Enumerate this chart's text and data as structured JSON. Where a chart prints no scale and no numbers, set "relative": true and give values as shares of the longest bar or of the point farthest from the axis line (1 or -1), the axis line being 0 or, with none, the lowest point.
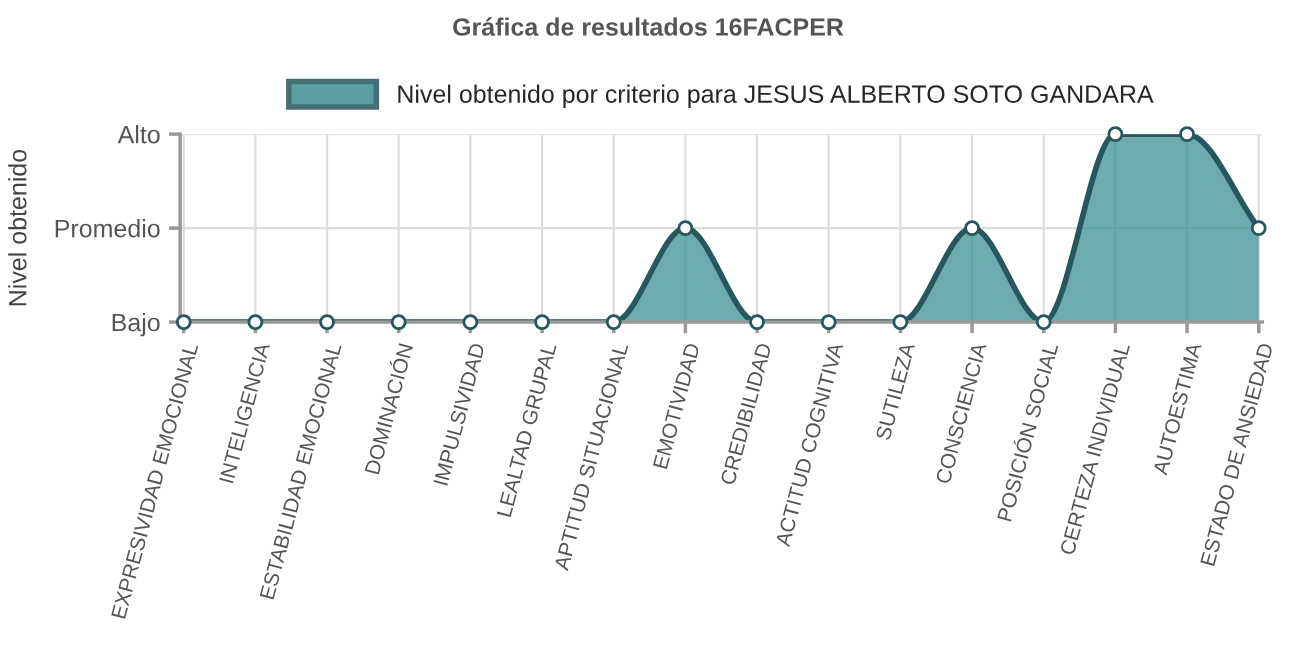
{
  "chart_data": {
    "type": "area",
    "title": "Gráfica de resultados 16FACPER",
    "ylabel": "Nivel obtenido",
    "categories": [
      "EXPRESIVIDAD EMOCIONAL",
      "INTELIGENCIA",
      "ESTABILIDAD EMOCIONAL",
      "DOMINACIÓN",
      "IMPULSIVIDAD",
      "LEALTAD GRUPAL",
      "APTITUD SITUACIONAL",
      "EMOTIVIDAD",
      "CREDIBILIDAD",
      "ACTITUD COGNITIVA",
      "SUTILEZA",
      "CONSCIENCIA",
      "POSICIÓN SOCIAL",
      "CERTEZA INDIVIDUAL",
      "AUTOESTIMA",
      "ESTADO DE ANSIEDAD"
    ],
    "series": [
      {
        "name": "Nivel obtenido por criterio para JESUS ALBERTO SOTO GANDARA",
        "color": "#3d8f95",
        "values": [
          0,
          0,
          0,
          0,
          0,
          0,
          0,
          0.5,
          0,
          0,
          0,
          0.5,
          0,
          1,
          1,
          0.5
        ]
      }
    ],
    "relative": true,
    "y_categories": [
      "Alto",
      "Promedio",
      "Bajo"
    ],
    "grid": true,
    "legend": "top",
    "marker": "circle",
    "line_style": "solid"
  }
}
